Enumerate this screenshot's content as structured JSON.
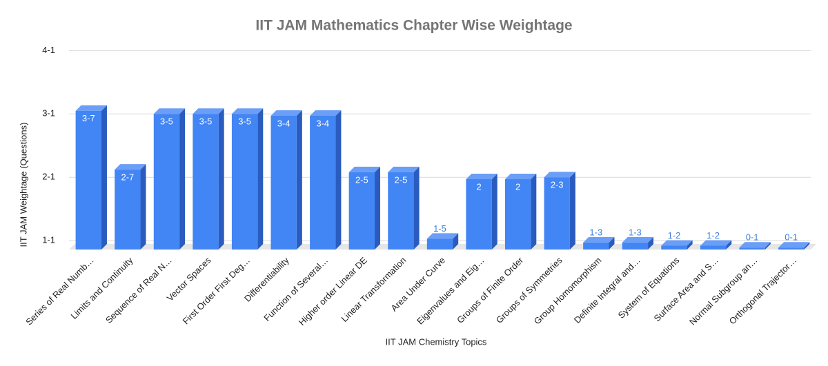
{
  "chart_data": {
    "type": "bar3d",
    "title": "IIT JAM Mathematics Chapter Wise Weightage",
    "x_label": "IIT JAM Chemistry Topics",
    "y_label": "IIT JAM Weightage (Questions)",
    "categories": [
      "Series of Real Numb…",
      "Limits and Continuity",
      "Sequence of Real N…",
      "Vector Spaces",
      "First Order First Deg…",
      "Differentiability",
      "Function of Several…",
      "Higher order Linear DE",
      "Linear Transformation",
      "Area Under Curve",
      "Eigenvalues and Eig…",
      "Groups of Finite Order",
      "Groups of Symmetries",
      "Group Homomorphism",
      "Definite Integral and…",
      "System of Equations",
      "Surface Area and S…",
      "Normal Subgroup an…",
      "Orthogonal Trajector…"
    ],
    "values": [
      3.05,
      2.12,
      3.0,
      3.0,
      3.0,
      2.97,
      2.97,
      2.08,
      2.08,
      1.03,
      1.97,
      1.97,
      2.0,
      0.97,
      0.97,
      0.92,
      0.92,
      0.89,
      0.89
    ],
    "value_labels": [
      "3-7",
      "2-7",
      "3-5",
      "3-5",
      "3-5",
      "3-4",
      "3-4",
      "2-5",
      "2-5",
      "1-5",
      "2",
      "2",
      "2-3",
      "1-3",
      "1-3",
      "1-2",
      "1-2",
      "0-1",
      "0-1"
    ],
    "color": "#4285f4",
    "ylim": [
      0.86,
      4.2
    ],
    "yticks": [
      {
        "value": 1,
        "label": "1-1"
      },
      {
        "value": 2,
        "label": "2-1"
      },
      {
        "value": 3,
        "label": "3-1"
      },
      {
        "value": 4,
        "label": "4-1"
      }
    ],
    "grid": true
  }
}
